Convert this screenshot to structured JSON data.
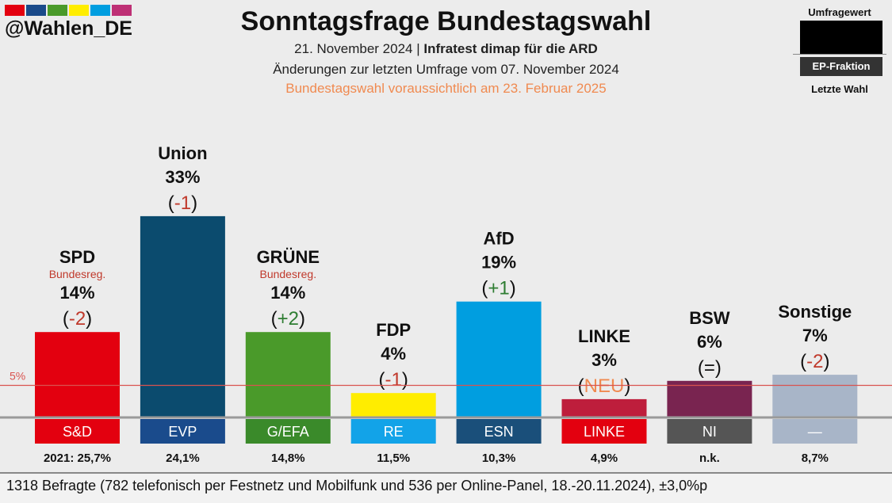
{
  "header": {
    "logo_colors": [
      "#e3000f",
      "#1a4a8a",
      "#4a9a2a",
      "#ffed00",
      "#009ee0",
      "#be3075"
    ],
    "handle": "@Wahlen_DE",
    "title": "Sonntagsfrage Bundestagswahl",
    "line1_date": "21. November 2024",
    "line1_sep": " | ",
    "line1_source": "Infratest dimap für die ARD",
    "line2": "Änderungen zur letzten Umfrage vom 07. November 2024",
    "line3": "Bundestagswahl voraussichtlich am 23. Februar 2025"
  },
  "legend": {
    "top": "Umfragewert",
    "middle": "EP-Fraktion",
    "bottom": "Letzte Wahl"
  },
  "chart_data": {
    "type": "bar",
    "ylim": [
      0,
      35
    ],
    "threshold": {
      "value": 5,
      "label": "5%"
    },
    "categories": [
      "SPD",
      "Union",
      "GRÜNE",
      "FDP",
      "AfD",
      "LINKE",
      "BSW",
      "Sonstige"
    ],
    "values": [
      14,
      33,
      14,
      4,
      19,
      3,
      6,
      7
    ],
    "value_labels": [
      "14%",
      "33%",
      "14%",
      "4%",
      "19%",
      "3%",
      "6%",
      "7%"
    ],
    "change_labels": [
      "-2",
      "-1",
      "+2",
      "-1",
      "+1",
      "NEU",
      "=",
      "-2"
    ],
    "change_colors": [
      "#c0392b",
      "#c0392b",
      "#2e7d32",
      "#c0392b",
      "#2e7d32",
      "#f08a50",
      "#111111",
      "#c0392b"
    ],
    "sublabels": [
      "Bundesreg.",
      "",
      "Bundesreg.",
      "",
      "",
      "",
      "",
      ""
    ],
    "bar_colors": [
      "#e3000f",
      "#0b4b6e",
      "#4a9a2a",
      "#ffed00",
      "#009ee0",
      "#be1e3c",
      "#792450",
      "#a8b5c8"
    ],
    "ep_groups": [
      "S&D",
      "EVP",
      "G/EFA",
      "RE",
      "ESN",
      "LINKE",
      "NI",
      "—"
    ],
    "ep_colors": [
      "#e3000f",
      "#1a4b8c",
      "#3a8a2a",
      "#12a3e8",
      "#1a4f7a",
      "#e3000f",
      "#555555",
      "#a8b5c8"
    ],
    "last_election": [
      "2021: 25,7%",
      "24,1%",
      "14,8%",
      "11,5%",
      "10,3%",
      "4,9%",
      "n.k.",
      "8,7%"
    ]
  },
  "footer": {
    "text": "1318 Befragte (782 telefonisch per Festnetz und Mobilfunk und 536 per Online-Panel, 18.-20.11.2024), ±3,0%p"
  }
}
